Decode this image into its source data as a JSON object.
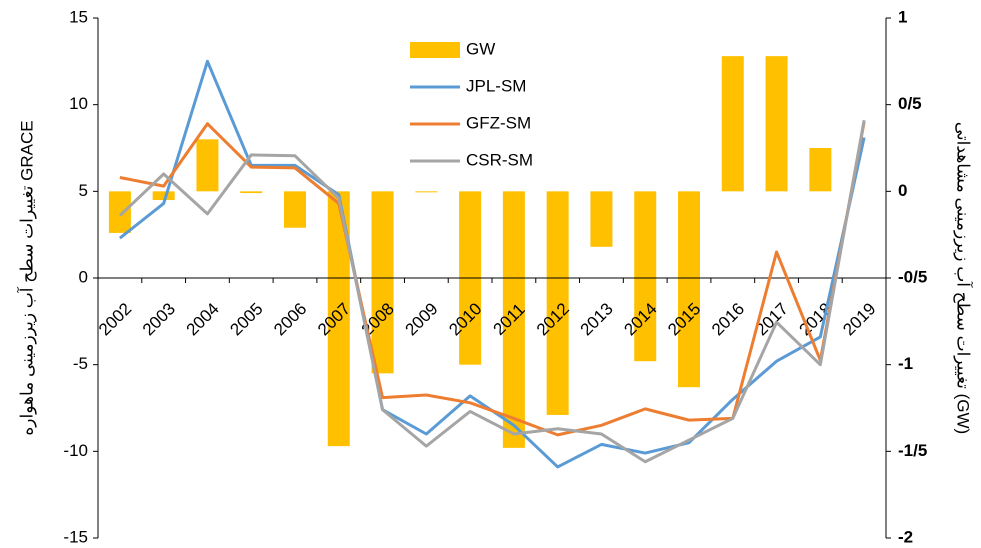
{
  "chart_data": {
    "type": "bar-line",
    "y_label": "تغییرات سطح آب زیرزمینی ماهواره GRACE",
    "y2_label": "تغییرات سطح آب زیرزمینی مشاهداتی (GW)",
    "categories": [
      "2002",
      "2003",
      "2004",
      "2005",
      "2006",
      "2007",
      "2008",
      "2009",
      "2010",
      "2011",
      "2012",
      "2013",
      "2014",
      "2015",
      "2016",
      "2017",
      "2018",
      "2019"
    ],
    "series": [
      {
        "name": "GW",
        "type": "bar",
        "axis": "y2",
        "color": "#FFC000",
        "values": [
          -0.24,
          -0.05,
          0.3,
          -0.01,
          -0.21,
          -1.47,
          -1.05,
          0,
          -1.0,
          -1.48,
          -1.29,
          -0.32,
          -0.98,
          -1.13,
          0.78,
          0.78,
          0.25,
          null
        ]
      },
      {
        "name": "JPL-SM",
        "type": "line",
        "color": "#5B9BD5",
        "values": [
          2.3,
          4.3,
          12.5,
          6.5,
          6.5,
          4.8,
          -7.6,
          -9.0,
          -6.8,
          -8.5,
          -10.9,
          -9.6,
          -10.1,
          -9.5,
          -7.0,
          -4.8,
          -3.4,
          8.1
        ]
      },
      {
        "name": "GFZ-SM",
        "type": "line",
        "color": "#ED7D31",
        "values": [
          5.8,
          5.3,
          8.9,
          6.4,
          6.35,
          4.3,
          -6.9,
          -6.75,
          -7.2,
          -8.1,
          -9.05,
          -8.5,
          -7.55,
          -8.2,
          -8.1,
          1.5,
          -4.75,
          9.0
        ]
      },
      {
        "name": "CSR-SM",
        "type": "line",
        "color": "#A5A5A5",
        "values": [
          3.6,
          6.0,
          3.7,
          7.1,
          7.05,
          4.6,
          -7.6,
          -9.7,
          -7.7,
          -9.0,
          -8.7,
          -9.0,
          -10.6,
          -9.35,
          -8.1,
          -2.55,
          -5.0,
          9.1
        ]
      }
    ],
    "ylim": [
      -15,
      15
    ],
    "yticks": [
      -15,
      -10,
      -5,
      0,
      5,
      10,
      15
    ],
    "y2lim": [
      -2,
      1
    ],
    "y2ticks": [
      -2,
      {
        "value": -1.5,
        "label": "-1/5"
      },
      -1,
      {
        "value": -0.5,
        "label": "-0/5"
      },
      0,
      {
        "value": 0.5,
        "label": "0/5"
      },
      1
    ]
  }
}
